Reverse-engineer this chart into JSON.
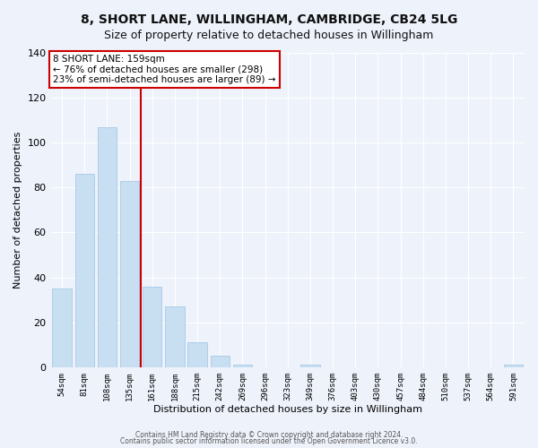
{
  "title": "8, SHORT LANE, WILLINGHAM, CAMBRIDGE, CB24 5LG",
  "subtitle": "Size of property relative to detached houses in Willingham",
  "xlabel": "Distribution of detached houses by size in Willingham",
  "ylabel": "Number of detached properties",
  "bar_labels": [
    "54sqm",
    "81sqm",
    "108sqm",
    "135sqm",
    "161sqm",
    "188sqm",
    "215sqm",
    "242sqm",
    "269sqm",
    "296sqm",
    "323sqm",
    "349sqm",
    "376sqm",
    "403sqm",
    "430sqm",
    "457sqm",
    "484sqm",
    "510sqm",
    "537sqm",
    "564sqm",
    "591sqm"
  ],
  "bar_values": [
    35,
    86,
    107,
    83,
    36,
    27,
    11,
    5,
    1,
    0,
    0,
    1,
    0,
    0,
    0,
    0,
    0,
    0,
    0,
    0,
    1
  ],
  "bar_color": "#c8dff2",
  "bar_edge_color": "#a8c8e8",
  "vline_color": "#cc0000",
  "annotation_title": "8 SHORT LANE: 159sqm",
  "annotation_line1": "← 76% of detached houses are smaller (298)",
  "annotation_line2": "23% of semi-detached houses are larger (89) →",
  "annotation_box_color": "#ffffff",
  "annotation_box_edge": "#cc0000",
  "ylim": [
    0,
    140
  ],
  "yticks": [
    0,
    20,
    40,
    60,
    80,
    100,
    120,
    140
  ],
  "footer1": "Contains HM Land Registry data © Crown copyright and database right 2024.",
  "footer2": "Contains public sector information licensed under the Open Government Licence v3.0.",
  "bg_color": "#eef2fb",
  "grid_color": "#ffffff",
  "title_fontsize": 10,
  "subtitle_fontsize": 9
}
